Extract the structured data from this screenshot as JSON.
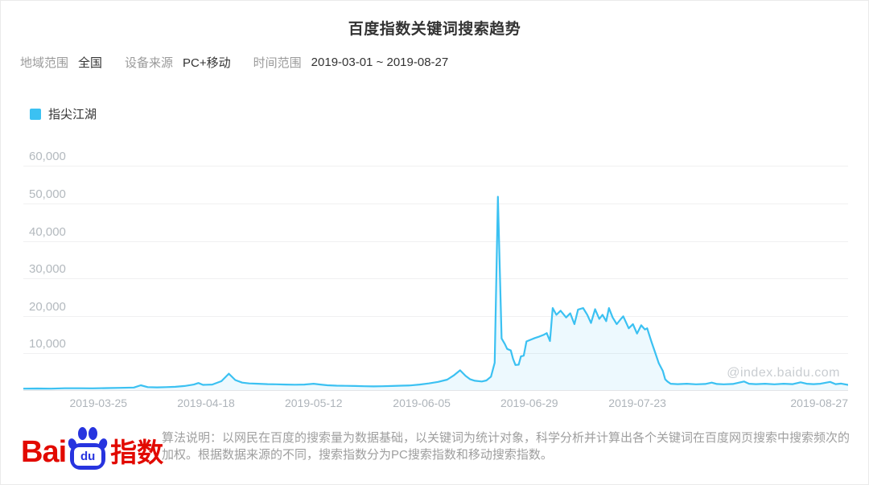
{
  "header": {
    "title": "百度指数关键词搜索趋势",
    "filters": [
      {
        "label": "地域范围",
        "value": "全国"
      },
      {
        "label": "设备来源",
        "value": "PC+移动"
      },
      {
        "label": "时间范围",
        "value": "2019-03-01 ~ 2019-08-27"
      }
    ]
  },
  "legend": {
    "label": "指尖江湖",
    "color": "#3BC1F2"
  },
  "watermark": "@index.baidu.com",
  "chart_data": {
    "type": "area",
    "title": "百度指数关键词搜索趋势",
    "series_name": "指尖江湖",
    "x_start_date": "2019-03-01",
    "x_end_date": "2019-08-27",
    "x_total_days": 179,
    "grid": "horizontal",
    "legend_position": "top-left",
    "ylim": [
      0,
      63300
    ],
    "y_ticks": [
      {
        "label": "10,000",
        "value": 10000
      },
      {
        "label": "20,000",
        "value": 20000
      },
      {
        "label": "30,000",
        "value": 30000
      },
      {
        "label": "40,000",
        "value": 40000
      },
      {
        "label": "50,000",
        "value": 50000
      },
      {
        "label": "60,000",
        "value": 60000
      }
    ],
    "x_ticks": [
      {
        "label": "2019-03-25",
        "pos": 0.091
      },
      {
        "label": "2019-04-18",
        "pos": 0.2215
      },
      {
        "label": "2019-05-12",
        "pos": 0.352
      },
      {
        "label": "2019-06-05",
        "pos": 0.483
      },
      {
        "label": "2019-06-29",
        "pos": 0.6135
      },
      {
        "label": "2019-07-23",
        "pos": 0.7445
      },
      {
        "label": "2019-08-27",
        "pos": 1.0,
        "align": "right"
      }
    ],
    "peak_value": 51800,
    "line_color": "#3BC1F2",
    "area_color": "rgba(59,193,242,0.09)",
    "points": [
      [
        0,
        600
      ],
      [
        3,
        650
      ],
      [
        6,
        600
      ],
      [
        9,
        700
      ],
      [
        12,
        700
      ],
      [
        15,
        680
      ],
      [
        18,
        750
      ],
      [
        21,
        820
      ],
      [
        24,
        900
      ],
      [
        25.5,
        1500
      ],
      [
        27,
        1000
      ],
      [
        29,
        950
      ],
      [
        31,
        1000
      ],
      [
        33,
        1100
      ],
      [
        35,
        1300
      ],
      [
        37,
        1700
      ],
      [
        38,
        2100
      ],
      [
        39,
        1600
      ],
      [
        41,
        1700
      ],
      [
        43,
        2600
      ],
      [
        44.6,
        4600
      ],
      [
        46,
        2900
      ],
      [
        47.5,
        2200
      ],
      [
        49,
        2000
      ],
      [
        51,
        1900
      ],
      [
        53,
        1800
      ],
      [
        55,
        1750
      ],
      [
        57,
        1700
      ],
      [
        59,
        1650
      ],
      [
        61,
        1700
      ],
      [
        63,
        1900
      ],
      [
        64.5,
        1700
      ],
      [
        66,
        1500
      ],
      [
        68,
        1400
      ],
      [
        70,
        1350
      ],
      [
        72,
        1300
      ],
      [
        74,
        1250
      ],
      [
        76,
        1200
      ],
      [
        78,
        1250
      ],
      [
        80,
        1300
      ],
      [
        82,
        1400
      ],
      [
        84,
        1450
      ],
      [
        86,
        1700
      ],
      [
        88,
        2000
      ],
      [
        90,
        2400
      ],
      [
        92,
        3000
      ],
      [
        93.5,
        4200
      ],
      [
        94.8,
        5500
      ],
      [
        96,
        4000
      ],
      [
        97,
        3100
      ],
      [
        98,
        2700
      ],
      [
        99.5,
        2500
      ],
      [
        100.5,
        2800
      ],
      [
        101.5,
        3800
      ],
      [
        102.3,
        7500
      ],
      [
        103,
        51800
      ],
      [
        103.8,
        14000
      ],
      [
        104.5,
        12500
      ],
      [
        105,
        11200
      ],
      [
        105.8,
        10800
      ],
      [
        106.3,
        8500
      ],
      [
        106.8,
        6900
      ],
      [
        107.5,
        7000
      ],
      [
        108,
        9200
      ],
      [
        108.6,
        9400
      ],
      [
        109.2,
        13200
      ],
      [
        110,
        13600
      ],
      [
        111,
        14100
      ],
      [
        112,
        14500
      ],
      [
        113,
        15000
      ],
      [
        113.6,
        15400
      ],
      [
        114.3,
        13300
      ],
      [
        114.9,
        22100
      ],
      [
        115.7,
        20300
      ],
      [
        116.6,
        21400
      ],
      [
        117.8,
        19600
      ],
      [
        118.7,
        20700
      ],
      [
        119.6,
        17800
      ],
      [
        120.4,
        21700
      ],
      [
        121.5,
        22100
      ],
      [
        122.4,
        20300
      ],
      [
        123.2,
        18100
      ],
      [
        124.1,
        21800
      ],
      [
        125,
        19200
      ],
      [
        125.7,
        20300
      ],
      [
        126.5,
        18600
      ],
      [
        127.1,
        22100
      ],
      [
        127.9,
        19600
      ],
      [
        128.8,
        17800
      ],
      [
        129.7,
        19200
      ],
      [
        130.2,
        19900
      ],
      [
        131.4,
        16700
      ],
      [
        132.3,
        17800
      ],
      [
        133.2,
        15300
      ],
      [
        134.1,
        17500
      ],
      [
        134.9,
        16400
      ],
      [
        135.4,
        16700
      ],
      [
        136.3,
        13200
      ],
      [
        137.2,
        10000
      ],
      [
        137.9,
        7400
      ],
      [
        138.8,
        5300
      ],
      [
        139.3,
        3100
      ],
      [
        139.8,
        2500
      ],
      [
        140.5,
        1900
      ],
      [
        142,
        1800
      ],
      [
        144,
        1900
      ],
      [
        146,
        1750
      ],
      [
        148,
        1850
      ],
      [
        149.4,
        2200
      ],
      [
        150.5,
        1850
      ],
      [
        152,
        1750
      ],
      [
        154,
        1850
      ],
      [
        156.4,
        2500
      ],
      [
        157.5,
        1900
      ],
      [
        159,
        1800
      ],
      [
        161,
        1900
      ],
      [
        163,
        1750
      ],
      [
        165,
        1900
      ],
      [
        167,
        1800
      ],
      [
        168.7,
        2300
      ],
      [
        170,
        1900
      ],
      [
        171.5,
        1800
      ],
      [
        173,
        1900
      ],
      [
        175.1,
        2400
      ],
      [
        176.3,
        1800
      ],
      [
        177.5,
        1950
      ],
      [
        179,
        1600
      ]
    ]
  },
  "footer": {
    "logo": {
      "bai": "Bai",
      "du": "du",
      "suffix": "指数",
      "red": "#E20A00",
      "blue": "#2734DF"
    },
    "algorithm_note": "算法说明：以网民在百度的搜索量为数据基础，以关键词为统计对象，科学分析并计算出各个关键词在百度网页搜索中搜索频次的加权。根据数据来源的不同，搜索指数分为PC搜索指数和移动搜索指数。"
  }
}
